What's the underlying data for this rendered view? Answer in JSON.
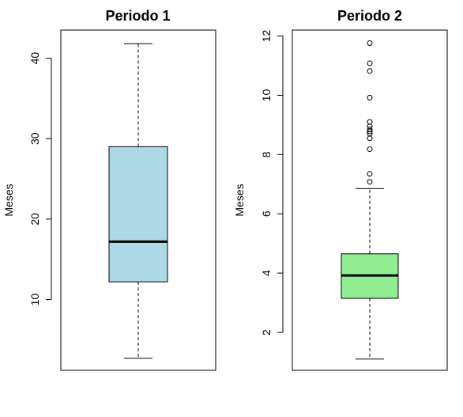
{
  "chart_data": [
    {
      "type": "boxplot",
      "title": "Periodo 1",
      "ylabel": "Meses",
      "ylim": [
        1.2,
        43.5
      ],
      "yticks": [
        10,
        20,
        30,
        40
      ],
      "fill": "#add8e6",
      "box": {
        "min": 2.7,
        "q1": 12.2,
        "median": 17.2,
        "q3": 29.0,
        "max": 41.8
      },
      "outliers": []
    },
    {
      "type": "boxplot",
      "title": "Periodo 2",
      "ylabel": "Meses",
      "ylim": [
        0.72,
        12.2
      ],
      "yticks": [
        2,
        4,
        6,
        8,
        10,
        12
      ],
      "fill": "#90ee90",
      "box": {
        "min": 1.1,
        "q1": 3.15,
        "median": 3.92,
        "q3": 4.65,
        "max": 6.85
      },
      "outliers": [
        7.08,
        7.35,
        8.18,
        8.55,
        8.7,
        8.78,
        8.85,
        8.95,
        9.1,
        9.92,
        10.82,
        11.08,
        11.76
      ]
    }
  ]
}
